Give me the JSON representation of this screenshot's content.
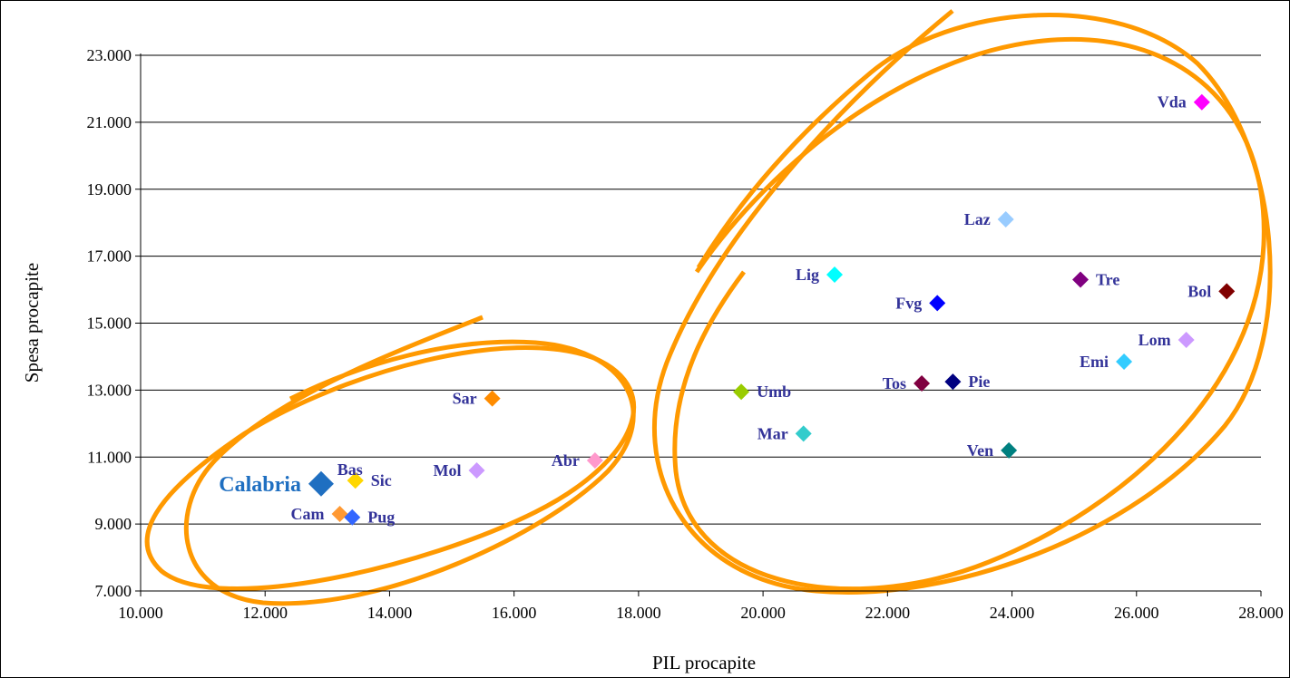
{
  "chart_data": {
    "type": "scatter",
    "title": "",
    "xlabel": "PIL procapite",
    "ylabel": "Spesa procapite",
    "xlim": [
      10000,
      28000
    ],
    "ylim": [
      7000,
      23000
    ],
    "x_ticks": [
      "10.000",
      "12.000",
      "14.000",
      "16.000",
      "18.000",
      "20.000",
      "22.000",
      "24.000",
      "26.000",
      "28.000"
    ],
    "y_ticks": [
      "7.000",
      "9.000",
      "11.000",
      "13.000",
      "15.000",
      "17.000",
      "19.000",
      "21.000",
      "23.000"
    ],
    "grid": "horizontal",
    "legend": "none",
    "points": [
      {
        "label": "Calabria",
        "x": 12900,
        "y": 10200,
        "color": "#1f6fc1",
        "highlight": true,
        "label_side": "left"
      },
      {
        "label": "Bas",
        "x": 13450,
        "y": 10300,
        "color": "#ffd700",
        "label_side": "dx:-6,dy:-12"
      },
      {
        "label": "Sic",
        "x": 13450,
        "y": 10300,
        "color": "#ffd700",
        "label_side": "right"
      },
      {
        "label": "Cam",
        "x": 13200,
        "y": 9300,
        "color": "#ff9933",
        "label_side": "left"
      },
      {
        "label": "Pug",
        "x": 13400,
        "y": 9200,
        "color": "#3366ff",
        "label_side": "right"
      },
      {
        "label": "Mol",
        "x": 15400,
        "y": 10600,
        "color": "#cc99ff",
        "label_side": "left"
      },
      {
        "label": "Abr",
        "x": 17300,
        "y": 10900,
        "color": "#ff99cc",
        "label_side": "left"
      },
      {
        "label": "Sar",
        "x": 15650,
        "y": 12750,
        "color": "#ff8c00",
        "label_side": "left"
      },
      {
        "label": "Umb",
        "x": 19650,
        "y": 12950,
        "color": "#99cc00",
        "label_side": "right"
      },
      {
        "label": "Mar",
        "x": 20650,
        "y": 11700,
        "color": "#33cccc",
        "label_side": "left"
      },
      {
        "label": "Lig",
        "x": 21150,
        "y": 16450,
        "color": "#00ffff",
        "label_side": "left"
      },
      {
        "label": "Fvg",
        "x": 22800,
        "y": 15600,
        "color": "#0000ff",
        "label_side": "left"
      },
      {
        "label": "Tos",
        "x": 22550,
        "y": 13200,
        "color": "#800040",
        "label_side": "left"
      },
      {
        "label": "Pie",
        "x": 23050,
        "y": 13250,
        "color": "#000080",
        "label_side": "right"
      },
      {
        "label": "Ven",
        "x": 23950,
        "y": 11200,
        "color": "#008080",
        "label_side": "left"
      },
      {
        "label": "Laz",
        "x": 23900,
        "y": 18100,
        "color": "#99ccff",
        "label_side": "left"
      },
      {
        "label": "Tre",
        "x": 25100,
        "y": 16300,
        "color": "#800080",
        "label_side": "right"
      },
      {
        "label": "Emi",
        "x": 25800,
        "y": 13850,
        "color": "#33ccff",
        "label_side": "left"
      },
      {
        "label": "Lom",
        "x": 26800,
        "y": 14500,
        "color": "#cc99ff",
        "label_side": "left"
      },
      {
        "label": "Vda",
        "x": 27050,
        "y": 21600,
        "color": "#ff00ff",
        "label_side": "left"
      },
      {
        "label": "Bol",
        "x": 27450,
        "y": 15950,
        "color": "#800000",
        "label_side": "left"
      }
    ],
    "annotation_color": "#ff9900"
  }
}
